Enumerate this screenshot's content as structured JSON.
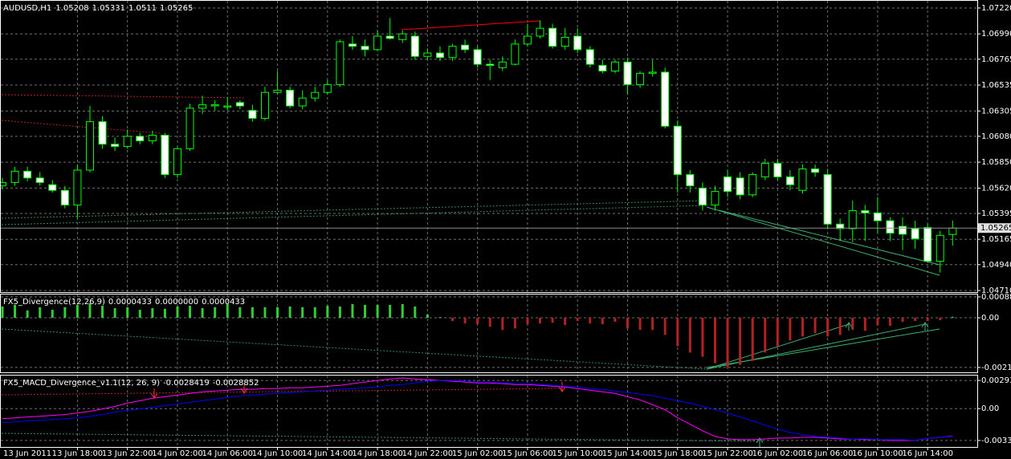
{
  "chart_data": [
    {
      "type": "candlestick",
      "title": "AUDUSD,H1",
      "ylim": [
        1.04689,
        1.07291
      ],
      "yticks": [
        {
          "value": 1.0722,
          "label": "1.07220"
        },
        {
          "value": 1.0699,
          "label": "1.06990"
        },
        1.06765,
        1.06535,
        1.06305,
        {
          "value": 1.0608,
          "label": "1.06080"
        },
        {
          "value": 1.0585,
          "label": "1.05850"
        },
        {
          "value": 1.0562,
          "label": "1.05620"
        },
        1.05395,
        1.05165,
        {
          "value": 1.0494,
          "label": "1.04940"
        },
        {
          "value": 1.0471,
          "label": "1.04710"
        }
      ],
      "grid": true,
      "bull_color": "#000000",
      "bear_color": "#ffffff",
      "wick_color": "#00ff00",
      "candles": [
        [
          1.0564,
          1.0571,
          1.0561,
          1.0567
        ],
        [
          1.0567,
          1.0581,
          1.0564,
          1.0577
        ],
        [
          1.0577,
          1.0581,
          1.0568,
          1.0571
        ],
        [
          1.0571,
          1.0576,
          1.0564,
          1.0567
        ],
        [
          1.0565,
          1.0569,
          1.0558,
          1.056
        ],
        [
          1.056,
          1.0564,
          1.0544,
          1.0547
        ],
        [
          1.0547,
          1.0583,
          1.0535,
          1.0578
        ],
        [
          1.0578,
          1.0635,
          1.0576,
          1.0621
        ],
        [
          1.0621,
          1.0626,
          1.0597,
          1.0601
        ],
        [
          1.0601,
          1.0607,
          1.0595,
          1.0599
        ],
        [
          1.0599,
          1.0614,
          1.0597,
          1.0608
        ],
        [
          1.0608,
          1.0611,
          1.0601,
          1.0604
        ],
        [
          1.0604,
          1.0613,
          1.0601,
          1.0609
        ],
        [
          1.0609,
          1.0611,
          1.0571,
          1.0574
        ],
        [
          1.0574,
          1.0599,
          1.0571,
          1.0597
        ],
        [
          1.0597,
          1.0637,
          1.0595,
          1.0633
        ],
        [
          1.0633,
          1.0644,
          1.0628,
          1.0636
        ],
        [
          1.0635,
          1.064,
          1.0631,
          1.0636
        ],
        [
          1.0634,
          1.0643,
          1.0631,
          1.0635
        ],
        [
          1.0638,
          1.064,
          1.0632,
          1.0635
        ],
        [
          1.0631,
          1.0636,
          1.0621,
          1.0624
        ],
        [
          1.0624,
          1.0652,
          1.0622,
          1.0647
        ],
        [
          1.0647,
          1.0666,
          1.0645,
          1.0649
        ],
        [
          1.0649,
          1.0652,
          1.0633,
          1.0635
        ],
        [
          1.0635,
          1.0649,
          1.0632,
          1.0642
        ],
        [
          1.0642,
          1.0652,
          1.0639,
          1.0647
        ],
        [
          1.0647,
          1.0658,
          1.0645,
          1.0654
        ],
        [
          1.0654,
          1.0694,
          1.0652,
          1.0692
        ],
        [
          1.069,
          1.0697,
          1.0685,
          1.0688
        ],
        [
          1.0688,
          1.0694,
          1.0679,
          1.0685
        ],
        [
          1.0685,
          1.0702,
          1.0684,
          1.0697
        ],
        [
          1.0697,
          1.0713,
          1.0694,
          1.0695
        ],
        [
          1.0694,
          1.0702,
          1.0691,
          1.0699
        ],
        [
          1.0697,
          1.0701,
          1.0676,
          1.0679
        ],
        [
          1.0679,
          1.0686,
          1.0676,
          1.0682
        ],
        [
          1.0682,
          1.0688,
          1.0675,
          1.0678
        ],
        [
          1.0678,
          1.069,
          1.0675,
          1.0688
        ],
        [
          1.0689,
          1.0694,
          1.0682,
          1.0685
        ],
        [
          1.0685,
          1.0688,
          1.0669,
          1.0672
        ],
        [
          1.0672,
          1.0676,
          1.0658,
          1.0671
        ],
        [
          1.0669,
          1.0679,
          1.0666,
          1.0674
        ],
        [
          1.0672,
          1.0694,
          1.0671,
          1.069
        ],
        [
          1.069,
          1.0708,
          1.0688,
          1.0697
        ],
        [
          1.0697,
          1.0711,
          1.0695,
          1.0704
        ],
        [
          1.0704,
          1.0708,
          1.0686,
          1.0688
        ],
        [
          1.0688,
          1.0704,
          1.0685,
          1.0696
        ],
        [
          1.0697,
          1.0704,
          1.0682,
          1.0685
        ],
        [
          1.0685,
          1.0688,
          1.0669,
          1.0672
        ],
        [
          1.0671,
          1.0676,
          1.0664,
          1.0666
        ],
        [
          1.0666,
          1.0676,
          1.0664,
          1.0674
        ],
        [
          1.0674,
          1.0678,
          1.0645,
          1.0654
        ],
        [
          1.0654,
          1.0666,
          1.0651,
          1.0664
        ],
        [
          1.0664,
          1.0676,
          1.0661,
          1.0665
        ],
        [
          1.0665,
          1.0669,
          1.0615,
          1.0617
        ],
        [
          1.0617,
          1.0622,
          1.0558,
          1.0574
        ],
        [
          1.0574,
          1.0578,
          1.0558,
          1.0564
        ],
        [
          1.0562,
          1.0567,
          1.0542,
          1.0547
        ],
        [
          1.0547,
          1.0564,
          1.0542,
          1.0559
        ],
        [
          1.0572,
          1.0578,
          1.0554,
          1.0559
        ],
        [
          1.0571,
          1.0576,
          1.0552,
          1.0556
        ],
        [
          1.0556,
          1.0576,
          1.0554,
          1.0574
        ],
        [
          1.0572,
          1.0588,
          1.0569,
          1.0584
        ],
        [
          1.0584,
          1.0588,
          1.0569,
          1.0572
        ],
        [
          1.0572,
          1.0578,
          1.056,
          1.0565
        ],
        [
          1.056,
          1.0583,
          1.0557,
          1.0579
        ],
        [
          1.0579,
          1.0583,
          1.0572,
          1.0576
        ],
        [
          1.0574,
          1.0579,
          1.0526,
          1.053
        ],
        [
          1.053,
          1.0535,
          1.0515,
          1.0526
        ],
        [
          1.0526,
          1.0551,
          1.0514,
          1.0542
        ],
        [
          1.0542,
          1.0547,
          1.0515,
          1.054
        ],
        [
          1.054,
          1.0554,
          1.0522,
          1.0533
        ],
        [
          1.0533,
          1.0536,
          1.0515,
          1.0522
        ],
        [
          1.0528,
          1.0536,
          1.0507,
          1.0521
        ],
        [
          1.0526,
          1.0533,
          1.0508,
          1.0517
        ],
        [
          1.0527,
          1.053,
          1.0497,
          1.0497
        ],
        [
          1.0497,
          1.0524,
          1.0487,
          1.052
        ],
        [
          1.05208,
          1.05331,
          1.0511,
          1.05265
        ]
      ]
    },
    {
      "type": "bar",
      "title": "FX5_Divergence(12,26,9)",
      "header_values": [
        "0.0000000",
        "0.0000433"
      ],
      "ylim": [
        -0.00234,
        0.00102
      ],
      "yticks": [
        0.000884,
        {
          "value": 0,
          "label": "0.00"
        },
        {
          "value": -0.0021,
          "label": "-0.00210"
        }
      ],
      "positive_color": "#32cd32",
      "negative_color": "#b22222",
      "values": [
        0.00048,
        0.00055,
        0.00031,
        0.00045,
        0.00034,
        0.00045,
        0.00055,
        0.00062,
        0.00051,
        0.00041,
        0.00045,
        0.00034,
        0.00041,
        0.00038,
        0.00048,
        0.00051,
        0.00041,
        0.00045,
        0.00058,
        0.00045,
        0.00045,
        0.00045,
        0.00045,
        0.00048,
        0.00045,
        0.00045,
        0.00051,
        0.00048,
        0.00058,
        0.00055,
        0.00055,
        0.00055,
        0.00058,
        0.00048,
        0.00014,
        3e-05,
        -0.00014,
        -0.00024,
        -0.00027,
        -0.00038,
        -0.00051,
        -0.00045,
        -0.00027,
        -0.00024,
        -0.00021,
        -0.00031,
        -0.00014,
        -0.00024,
        -0.00027,
        -0.00017,
        -0.00045,
        -0.00051,
        -0.00051,
        -0.00072,
        -0.0012,
        -0.00147,
        -0.00165,
        -0.00192,
        -0.00209,
        -0.00199,
        -0.00182,
        -0.00147,
        -0.0012,
        -0.00096,
        -0.00079,
        -0.00065,
        -0.00079,
        -0.00072,
        -0.00051,
        -0.00055,
        -0.00031,
        -0.00034,
        -0.00017,
        -0.00014,
        -0.00014,
        -0.0001,
        4.33e-05
      ]
    },
    {
      "type": "line",
      "title": "FX5_MACD_Divergence_v1.1(12, 26, 9)",
      "ylim": [
        -0.004081,
        0.003531
      ],
      "yticks": [
        0.002939,
        {
          "value": 0,
          "label": "0.00"
        },
        -0.00332
      ],
      "series": [
        {
          "color": "#ff00ff",
          "values": [
            -0.00104,
            -0.00096,
            -0.00087,
            -0.00079,
            -0.0007,
            -0.00062,
            -0.00045,
            -0.00028,
            -3e-05,
            0.00023,
            0.00057,
            0.00082,
            0.00107,
            0.00124,
            0.00141,
            0.00158,
            0.00175,
            0.00184,
            0.00192,
            0.00201,
            0.00201,
            0.00209,
            0.00209,
            0.00217,
            0.00217,
            0.00226,
            0.00234,
            0.00243,
            0.0026,
            0.00277,
            0.00294,
            0.0031,
            0.00319,
            0.0031,
            0.00302,
            0.00294,
            0.00285,
            0.00277,
            0.00268,
            0.00268,
            0.0026,
            0.00251,
            0.00251,
            0.00243,
            0.00234,
            0.00226,
            0.00209,
            0.00192,
            0.00175,
            0.00158,
            0.00124,
            0.00091,
            0.0004,
            -0.00011,
            -0.00096,
            -0.00163,
            -0.00231,
            -0.0029,
            -0.00316,
            -0.00324,
            -0.00324,
            -0.00316,
            -0.00307,
            -0.00307,
            -0.00299,
            -0.00299,
            -0.00307,
            -0.00316,
            -0.00316,
            -0.00324,
            -0.00324,
            -0.00332,
            -0.00332,
            -0.00332,
            -0.0031,
            -0.003,
            -0.0028419
          ]
        },
        {
          "color": "#0000ff",
          "values": [
            -0.00146,
            -0.00138,
            -0.00129,
            -0.00121,
            -0.00113,
            -0.00104,
            -0.00096,
            -0.00079,
            -0.00062,
            -0.00036,
            -0.00019,
            -3e-05,
            0.00014,
            0.00031,
            0.00048,
            0.00065,
            0.00082,
            0.00099,
            0.00116,
            0.00133,
            0.00141,
            0.0015,
            0.00158,
            0.00167,
            0.00175,
            0.00184,
            0.00192,
            0.00201,
            0.00209,
            0.00217,
            0.00226,
            0.00243,
            0.00251,
            0.00268,
            0.00285,
            0.00294,
            0.00294,
            0.00285,
            0.00277,
            0.00277,
            0.00268,
            0.0026,
            0.0026,
            0.00251,
            0.00243,
            0.00234,
            0.00226,
            0.00209,
            0.00201,
            0.00184,
            0.00167,
            0.0015,
            0.00133,
            0.00107,
            0.00082,
            0.00057,
            0.00023,
            -0.00011,
            -0.00045,
            -0.00087,
            -0.00129,
            -0.00172,
            -0.00214,
            -0.00248,
            -0.00273,
            -0.0029,
            -0.00299,
            -0.00307,
            -0.00316,
            -0.00316,
            -0.00324,
            -0.00324,
            -0.00324,
            -0.00332,
            -0.0031,
            -0.003,
            -0.0028852
          ]
        }
      ]
    }
  ],
  "time_axis": {
    "labels": [
      "13 Jun 2011",
      "13 Jun 18:00",
      "13 Jun 22:00",
      "14 Jun 02:00",
      "14 Jun 06:00",
      "14 Jun 10:00",
      "14 Jun 14:00",
      "14 Jun 18:00",
      "14 Jun 22:00",
      "15 Jun 02:00",
      "15 Jun 06:00",
      "15 Jun 10:00",
      "15 Jun 14:00",
      "15 Jun 18:00",
      "15 Jun 22:00",
      "16 Jun 02:00",
      "16 Jun 06:00",
      "16 Jun 10:00",
      "16 Jun 14:00"
    ]
  }
}
